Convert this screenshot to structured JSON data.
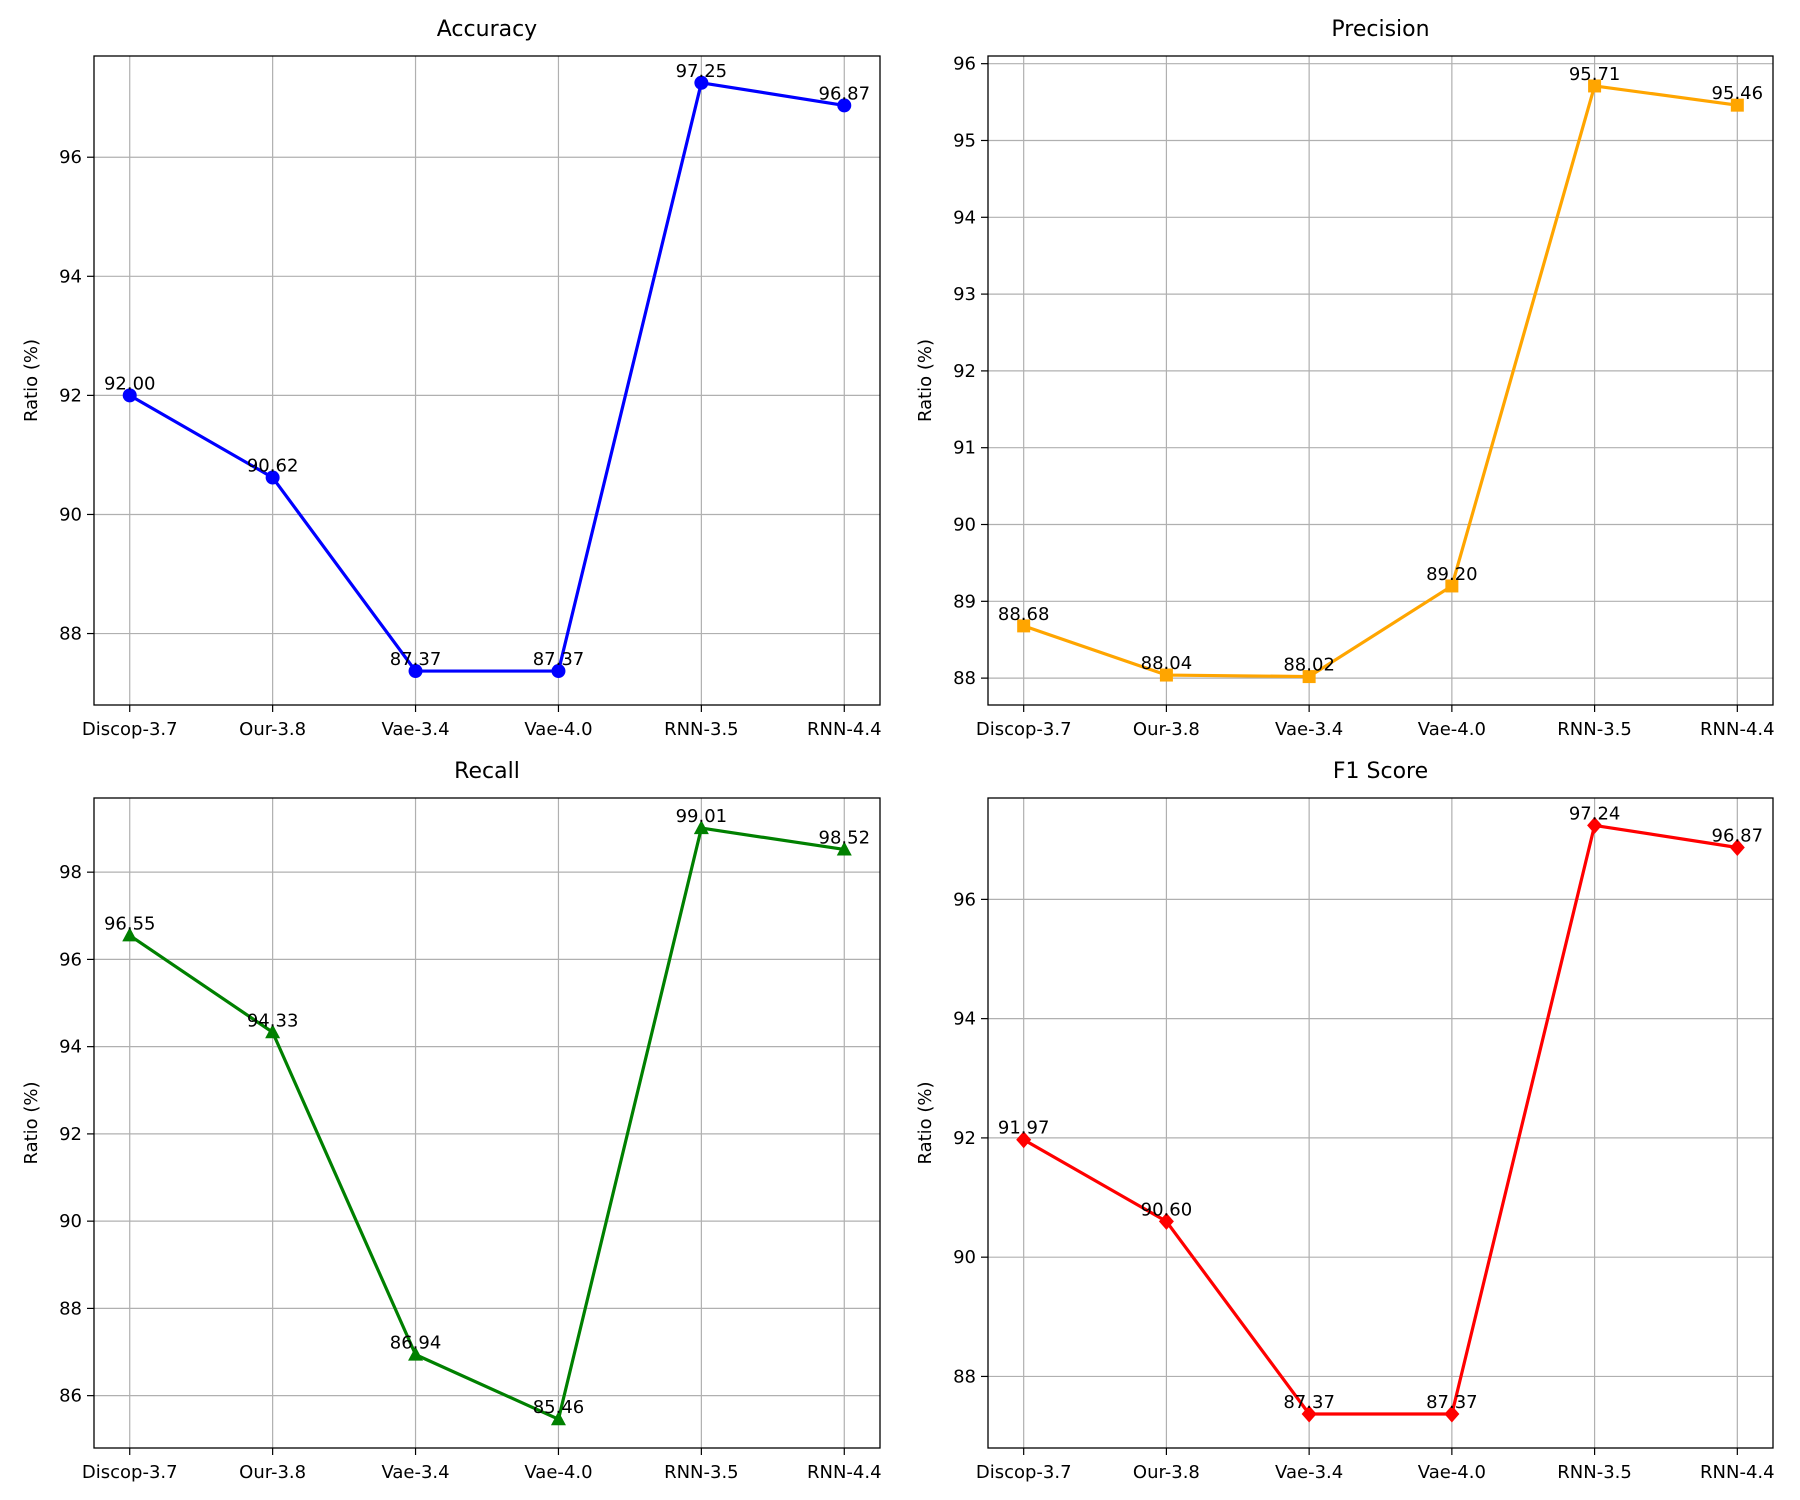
{
  "chart_data": [
    {
      "type": "line",
      "title": "Accuracy",
      "ylabel": "Ratio (%)",
      "categories": [
        "Discop-3.7",
        "Our-3.8",
        "Vae-3.4",
        "Vae-4.0",
        "RNN-3.5",
        "RNN-4.4"
      ],
      "values": [
        92.0,
        90.62,
        87.37,
        87.37,
        97.25,
        96.87
      ],
      "data_labels": [
        "92.00",
        "90.62",
        "87.37",
        "87.37",
        "97.25",
        "96.87"
      ],
      "ylim": [
        86.8,
        97.7
      ],
      "yticks": [
        88,
        90,
        92,
        94,
        96
      ],
      "color": "#0000ff",
      "marker": "circle",
      "grid": true
    },
    {
      "type": "line",
      "title": "Precision",
      "ylabel": "Ratio (%)",
      "categories": [
        "Discop-3.7",
        "Our-3.8",
        "Vae-3.4",
        "Vae-4.0",
        "RNN-3.5",
        "RNN-4.4"
      ],
      "values": [
        88.68,
        88.04,
        88.02,
        89.2,
        95.71,
        95.46
      ],
      "data_labels": [
        "88.68",
        "88.04",
        "88.02",
        "89.20",
        "95.71",
        "95.46"
      ],
      "ylim": [
        87.65,
        96.1
      ],
      "yticks": [
        88,
        89,
        90,
        91,
        92,
        93,
        94,
        95,
        96
      ],
      "color": "#ffa500",
      "marker": "square",
      "grid": true
    },
    {
      "type": "line",
      "title": "Recall",
      "ylabel": "Ratio (%)",
      "categories": [
        "Discop-3.7",
        "Our-3.8",
        "Vae-3.4",
        "Vae-4.0",
        "RNN-3.5",
        "RNN-4.4"
      ],
      "values": [
        96.55,
        94.33,
        86.94,
        85.46,
        99.01,
        98.52
      ],
      "data_labels": [
        "96.55",
        "94.33",
        "86.94",
        "85.46",
        "99.01",
        "98.52"
      ],
      "ylim": [
        84.8,
        99.7
      ],
      "yticks": [
        86,
        88,
        90,
        92,
        94,
        96,
        98
      ],
      "color": "#008000",
      "marker": "triangle",
      "grid": true
    },
    {
      "type": "line",
      "title": "F1 Score",
      "ylabel": "Ratio (%)",
      "categories": [
        "Discop-3.7",
        "Our-3.8",
        "Vae-3.4",
        "Vae-4.0",
        "RNN-3.5",
        "RNN-4.4"
      ],
      "values": [
        91.97,
        90.6,
        87.37,
        87.37,
        97.24,
        96.87
      ],
      "data_labels": [
        "91.97",
        "90.60",
        "87.37",
        "87.37",
        "97.24",
        "96.87"
      ],
      "ylim": [
        86.8,
        97.7
      ],
      "yticks": [
        88,
        90,
        92,
        94,
        96
      ],
      "color": "#ff0000",
      "marker": "diamond",
      "grid": true
    }
  ]
}
